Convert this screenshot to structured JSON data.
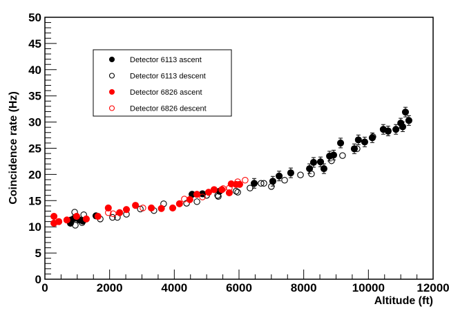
{
  "chart_data": {
    "type": "scatter",
    "title": "",
    "xlabel": "Altitude (ft)",
    "ylabel": "Coincidence rate (Hz)",
    "xlim": [
      0,
      12000
    ],
    "ylim": [
      0,
      50
    ],
    "x_ticks": [
      "0",
      "2000",
      "4000",
      "6000",
      "8000",
      "10000",
      "12000"
    ],
    "y_ticks": [
      "0",
      "5",
      "10",
      "15",
      "20",
      "25",
      "30",
      "35",
      "40",
      "45",
      "50"
    ],
    "grid": false,
    "legend_position": "top-left",
    "series": [
      {
        "name": "Detector 6113 ascent",
        "color": "#000000",
        "filled": true,
        "points": [
          [
            790,
            10.7
          ],
          [
            810,
            11.3
          ],
          [
            900,
            11.6
          ],
          [
            1070,
            11.3
          ],
          [
            1170,
            11.1
          ],
          [
            1580,
            12.1
          ],
          [
            4550,
            16.2
          ],
          [
            4870,
            16.3
          ],
          [
            5400,
            16.8
          ],
          [
            6470,
            18.3
          ],
          [
            7045,
            18.7
          ],
          [
            7240,
            19.7
          ],
          [
            7600,
            20.3
          ],
          [
            8180,
            21.1
          ],
          [
            8305,
            22.3
          ],
          [
            8520,
            22.4
          ],
          [
            8625,
            21.1
          ],
          [
            8800,
            23.5
          ],
          [
            8925,
            23.7
          ],
          [
            9140,
            26.0
          ],
          [
            9565,
            24.9
          ],
          [
            9690,
            26.6
          ],
          [
            9885,
            26.2
          ],
          [
            10120,
            27.0
          ],
          [
            10460,
            28.6
          ],
          [
            10610,
            28.3
          ],
          [
            10850,
            28.6
          ],
          [
            11000,
            29.8
          ],
          [
            11060,
            29.1
          ],
          [
            11145,
            31.9
          ],
          [
            11250,
            30.3
          ]
        ]
      },
      {
        "name": "Detector 6113 descent",
        "color": "#000000",
        "filled": false,
        "points": [
          [
            920,
            12.8
          ],
          [
            940,
            10.3
          ],
          [
            1150,
            10.8
          ],
          [
            1200,
            12.3
          ],
          [
            1710,
            11.5
          ],
          [
            2090,
            11.8
          ],
          [
            2240,
            11.8
          ],
          [
            2520,
            12.4
          ],
          [
            2950,
            13.4
          ],
          [
            3370,
            13.1
          ],
          [
            3670,
            14.4
          ],
          [
            4380,
            14.5
          ],
          [
            4700,
            14.8
          ],
          [
            5000,
            16.0
          ],
          [
            5340,
            16.0
          ],
          [
            5360,
            15.8
          ],
          [
            5910,
            16.8
          ],
          [
            5960,
            16.6
          ],
          [
            6340,
            17.4
          ],
          [
            6680,
            18.3
          ],
          [
            6770,
            18.3
          ],
          [
            7000,
            17.7
          ],
          [
            7410,
            18.9
          ],
          [
            7900,
            19.9
          ],
          [
            8240,
            20.1
          ],
          [
            8860,
            22.6
          ],
          [
            9200,
            23.6
          ],
          [
            9650,
            24.9
          ],
          [
            10140,
            27.2
          ],
          [
            10610,
            28.2
          ]
        ]
      },
      {
        "name": "Detector 6826 ascent",
        "color": "#ff0000",
        "filled": true,
        "points": [
          [
            280,
            12.0
          ],
          [
            280,
            10.7
          ],
          [
            430,
            11.0
          ],
          [
            680,
            11.3
          ],
          [
            980,
            12.0
          ],
          [
            1280,
            11.5
          ],
          [
            1640,
            12.0
          ],
          [
            1960,
            13.6
          ],
          [
            2310,
            12.7
          ],
          [
            2520,
            13.3
          ],
          [
            2800,
            14.1
          ],
          [
            3290,
            13.6
          ],
          [
            3600,
            13.5
          ],
          [
            3950,
            13.6
          ],
          [
            4160,
            14.4
          ],
          [
            4480,
            15.2
          ],
          [
            4700,
            16.2
          ],
          [
            5060,
            16.6
          ],
          [
            5230,
            17.1
          ],
          [
            5470,
            17.1
          ],
          [
            5700,
            16.5
          ],
          [
            5760,
            18.2
          ],
          [
            5910,
            18.1
          ],
          [
            6020,
            18.1
          ]
        ]
      },
      {
        "name": "Detector 6826 descent",
        "color": "#ff0000",
        "filled": false,
        "points": [
          [
            1960,
            12.7
          ],
          [
            2110,
            12.5
          ],
          [
            3030,
            13.6
          ],
          [
            4310,
            15.3
          ],
          [
            4870,
            15.7
          ],
          [
            5510,
            17.3
          ],
          [
            5700,
            17.4
          ],
          [
            5960,
            18.6
          ],
          [
            6190,
            18.9
          ]
        ]
      }
    ]
  }
}
